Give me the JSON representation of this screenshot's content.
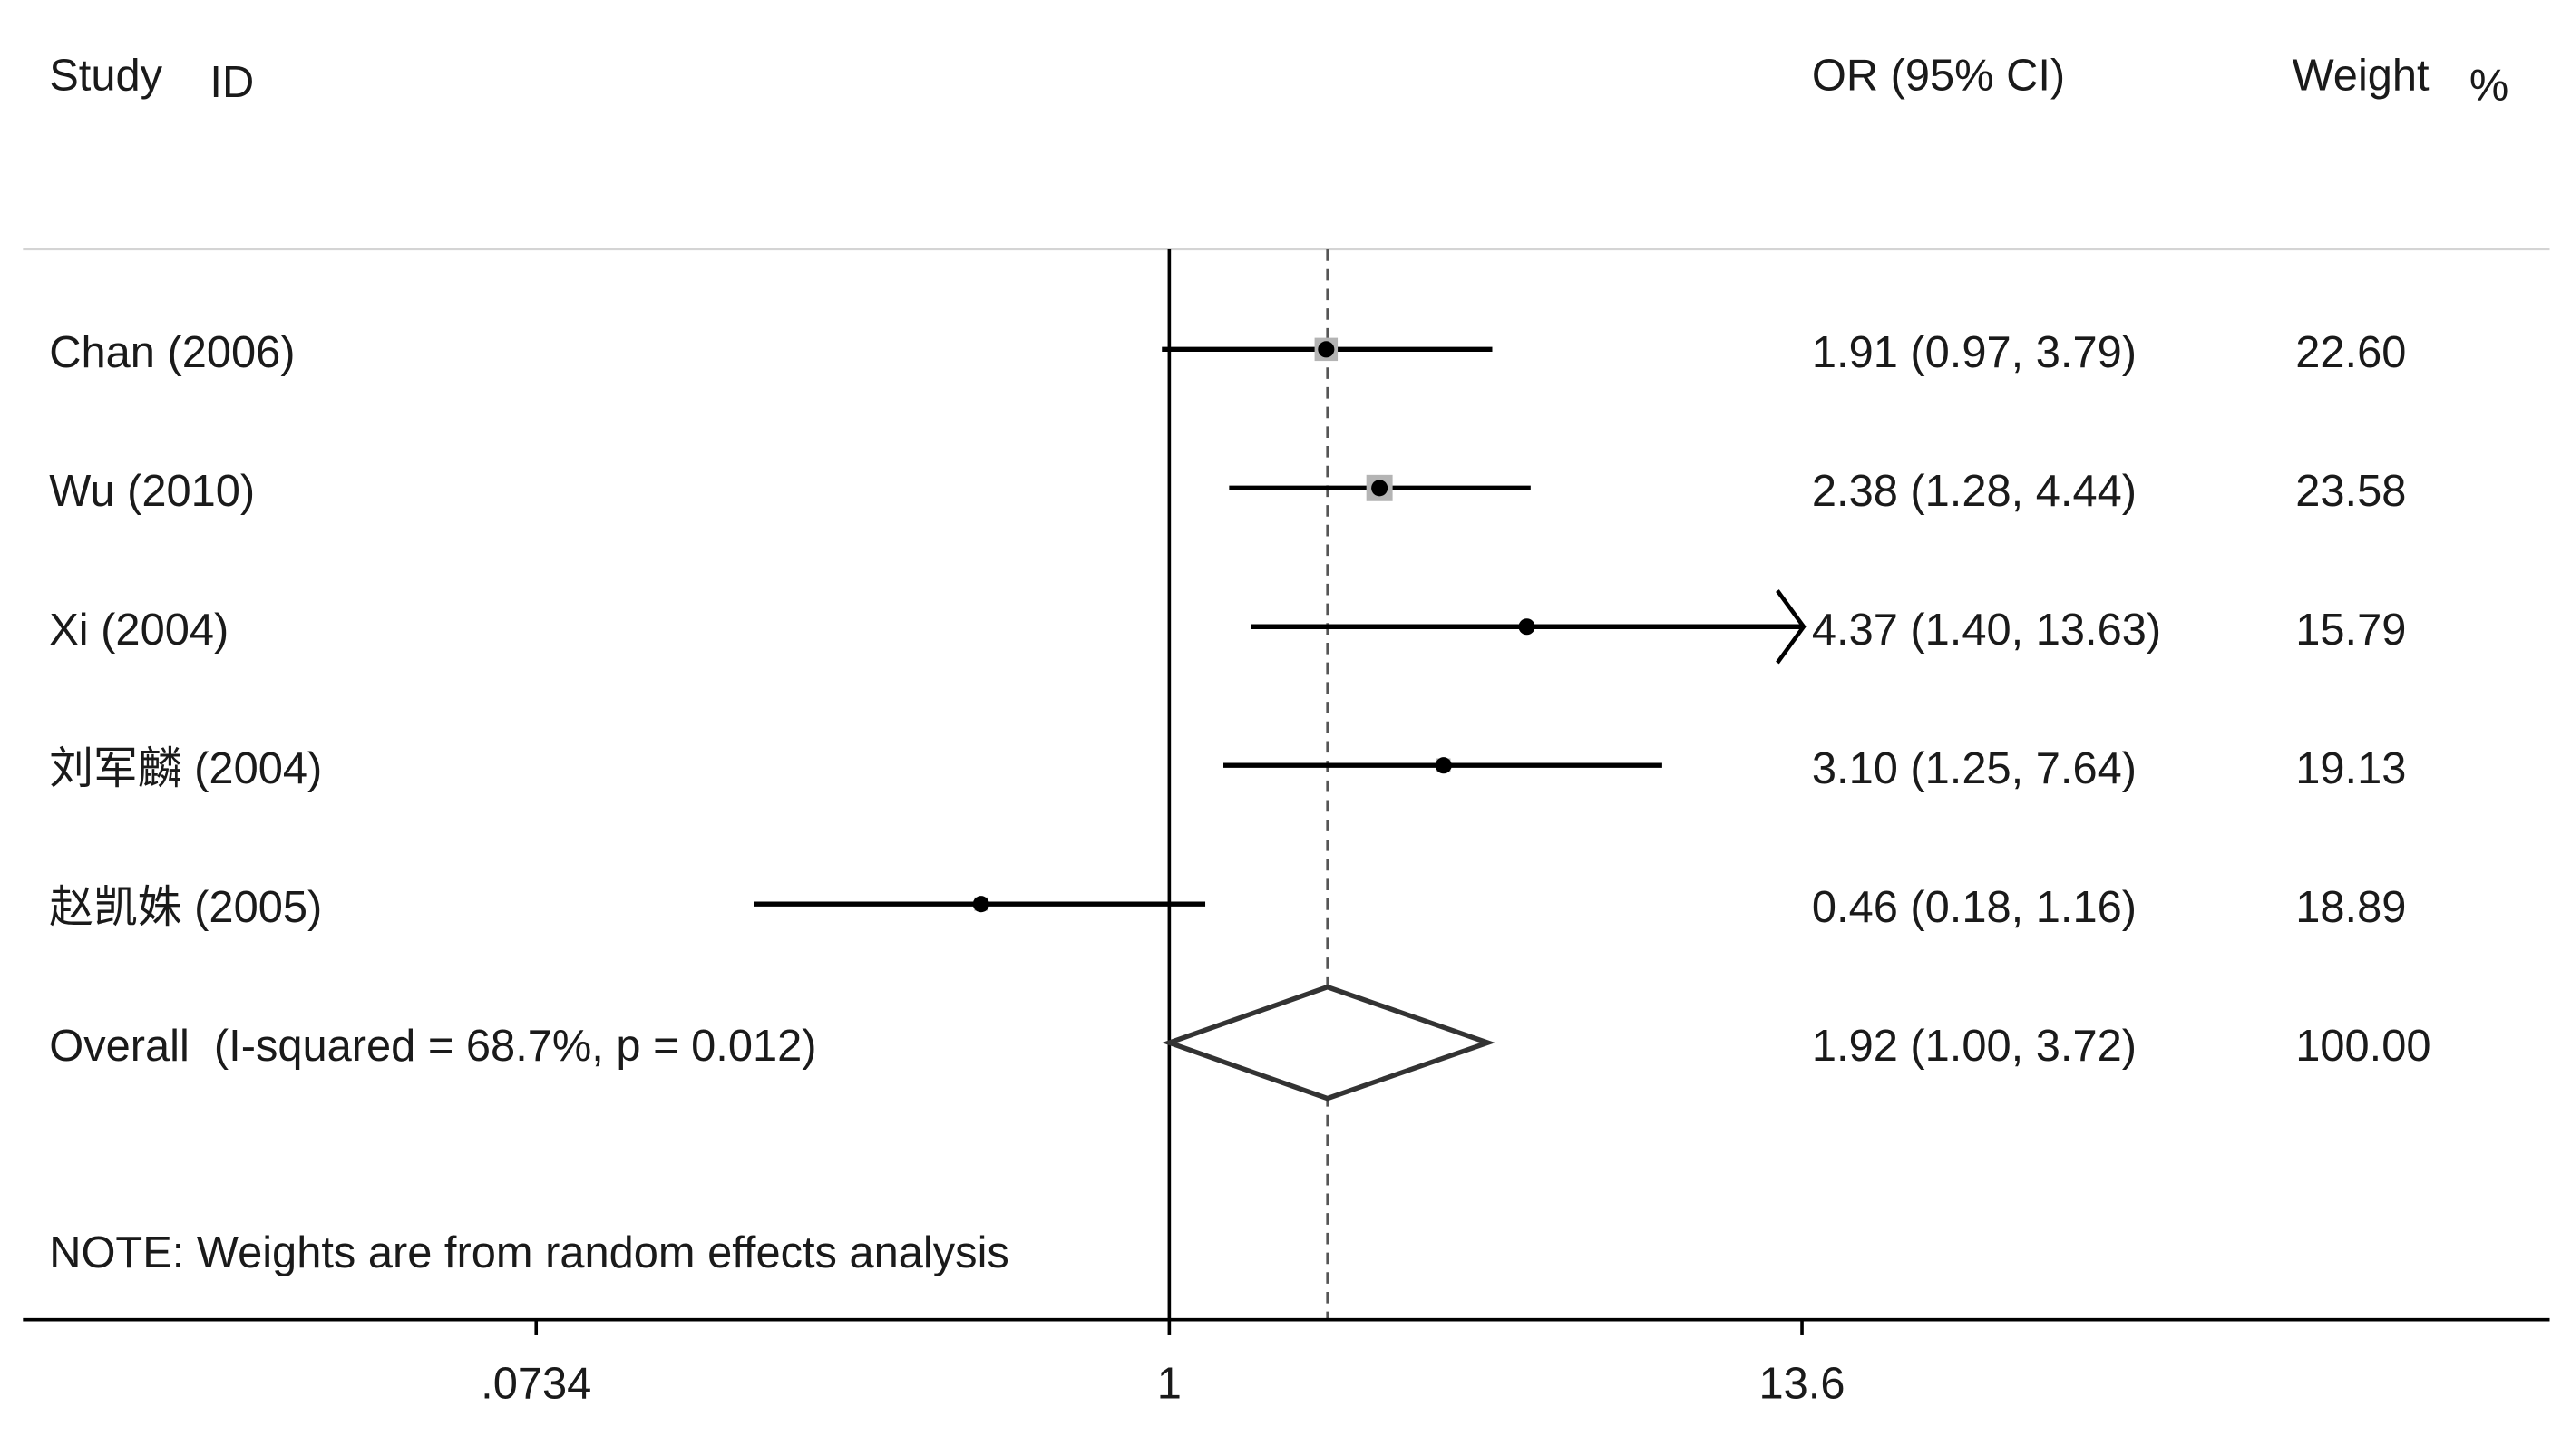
{
  "header": {
    "study_label": "Study",
    "id_label": "ID",
    "or_label": "OR (95% CI)",
    "weight_label": "Weight",
    "percent_label": "%"
  },
  "note": "NOTE: Weights are from random effects analysis",
  "colors": {
    "text": "#1a1a1a",
    "ci_line": "#000000",
    "point": "#000000",
    "weight_box": "#b4b4b4",
    "diamond_stroke": "#333333",
    "diamond_fill": "#ffffff",
    "null_line": "#000000",
    "overall_line": "#555555",
    "separator": "#d4d4d4",
    "axis": "#000000"
  },
  "chart_data": {
    "type": "scatter",
    "x_scale": "log",
    "xlim": [
      0.0734,
      13.6
    ],
    "x_ticks": [
      0.0734,
      1,
      13.6
    ],
    "x_tick_labels": [
      ".0734",
      "1",
      "13.6"
    ],
    "null_value": 1,
    "grid": false,
    "studies": [
      {
        "id": "Chan (2006)",
        "or": 1.91,
        "ci": [
          0.97,
          3.79
        ],
        "or_ci_text": "1.91 (0.97, 3.79)",
        "weight": 22.6,
        "weight_text": "22.60"
      },
      {
        "id": "Wu (2010)",
        "or": 2.38,
        "ci": [
          1.28,
          4.44
        ],
        "or_ci_text": "2.38 (1.28, 4.44)",
        "weight": 23.58,
        "weight_text": "23.58"
      },
      {
        "id": "Xi (2004)",
        "or": 4.37,
        "ci": [
          1.4,
          13.63
        ],
        "or_ci_text": "4.37 (1.40, 13.63)",
        "weight": 15.79,
        "weight_text": "15.79"
      },
      {
        "id": "刘军麟 (2004)",
        "or": 3.1,
        "ci": [
          1.25,
          7.64
        ],
        "or_ci_text": "3.10 (1.25, 7.64)",
        "weight": 19.13,
        "weight_text": "19.13"
      },
      {
        "id": "赵凯姝 (2005)",
        "or": 0.46,
        "ci": [
          0.18,
          1.16
        ],
        "or_ci_text": "0.46 (0.18, 1.16)",
        "weight": 18.89,
        "weight_text": "18.89"
      }
    ],
    "overall": {
      "label": "Overall  (I-squared = 68.7%, p = 0.012)",
      "or": 1.92,
      "ci": [
        1.0,
        3.72
      ],
      "or_ci_text": "1.92 (1.00, 3.72)",
      "weight": 100.0,
      "weight_text": "100.00"
    }
  }
}
